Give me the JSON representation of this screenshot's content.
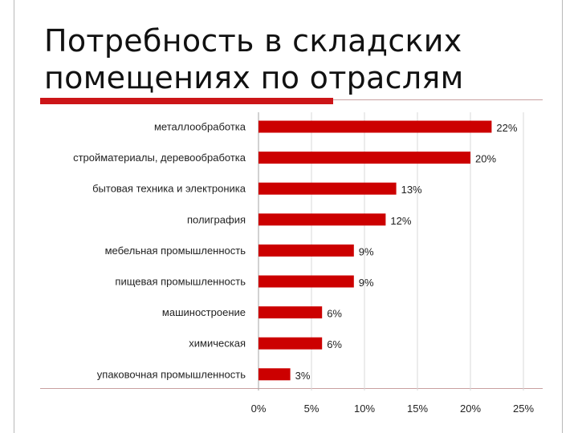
{
  "title": {
    "line1": "Потребность в складских",
    "line2": "помещениях по отраслям"
  },
  "colors": {
    "bar": "#cc0000",
    "accent_rule": "#cc1518",
    "grid": "#d9d9d9"
  },
  "chart_data": {
    "type": "bar",
    "orientation": "horizontal",
    "categories": [
      "металлообработка",
      "стройматериалы, деревообработка",
      "бытовая техника и электроника",
      "полиграфия",
      "мебельная промышленность",
      "пищевая промышленность",
      "машиностроение",
      "химическая",
      "упаковочная промышленность"
    ],
    "values": [
      22,
      20,
      13,
      12,
      9,
      9,
      6,
      6,
      3
    ],
    "value_labels": [
      "22%",
      "20%",
      "13%",
      "12%",
      "9%",
      "9%",
      "6%",
      "6%",
      "3%"
    ],
    "xlim": [
      0,
      25
    ],
    "xticks": [
      0,
      5,
      10,
      15,
      20,
      25
    ],
    "xtick_labels": [
      "0%",
      "5%",
      "10%",
      "15%",
      "20%",
      "25%"
    ],
    "grid": "vertical",
    "legend": "none"
  }
}
